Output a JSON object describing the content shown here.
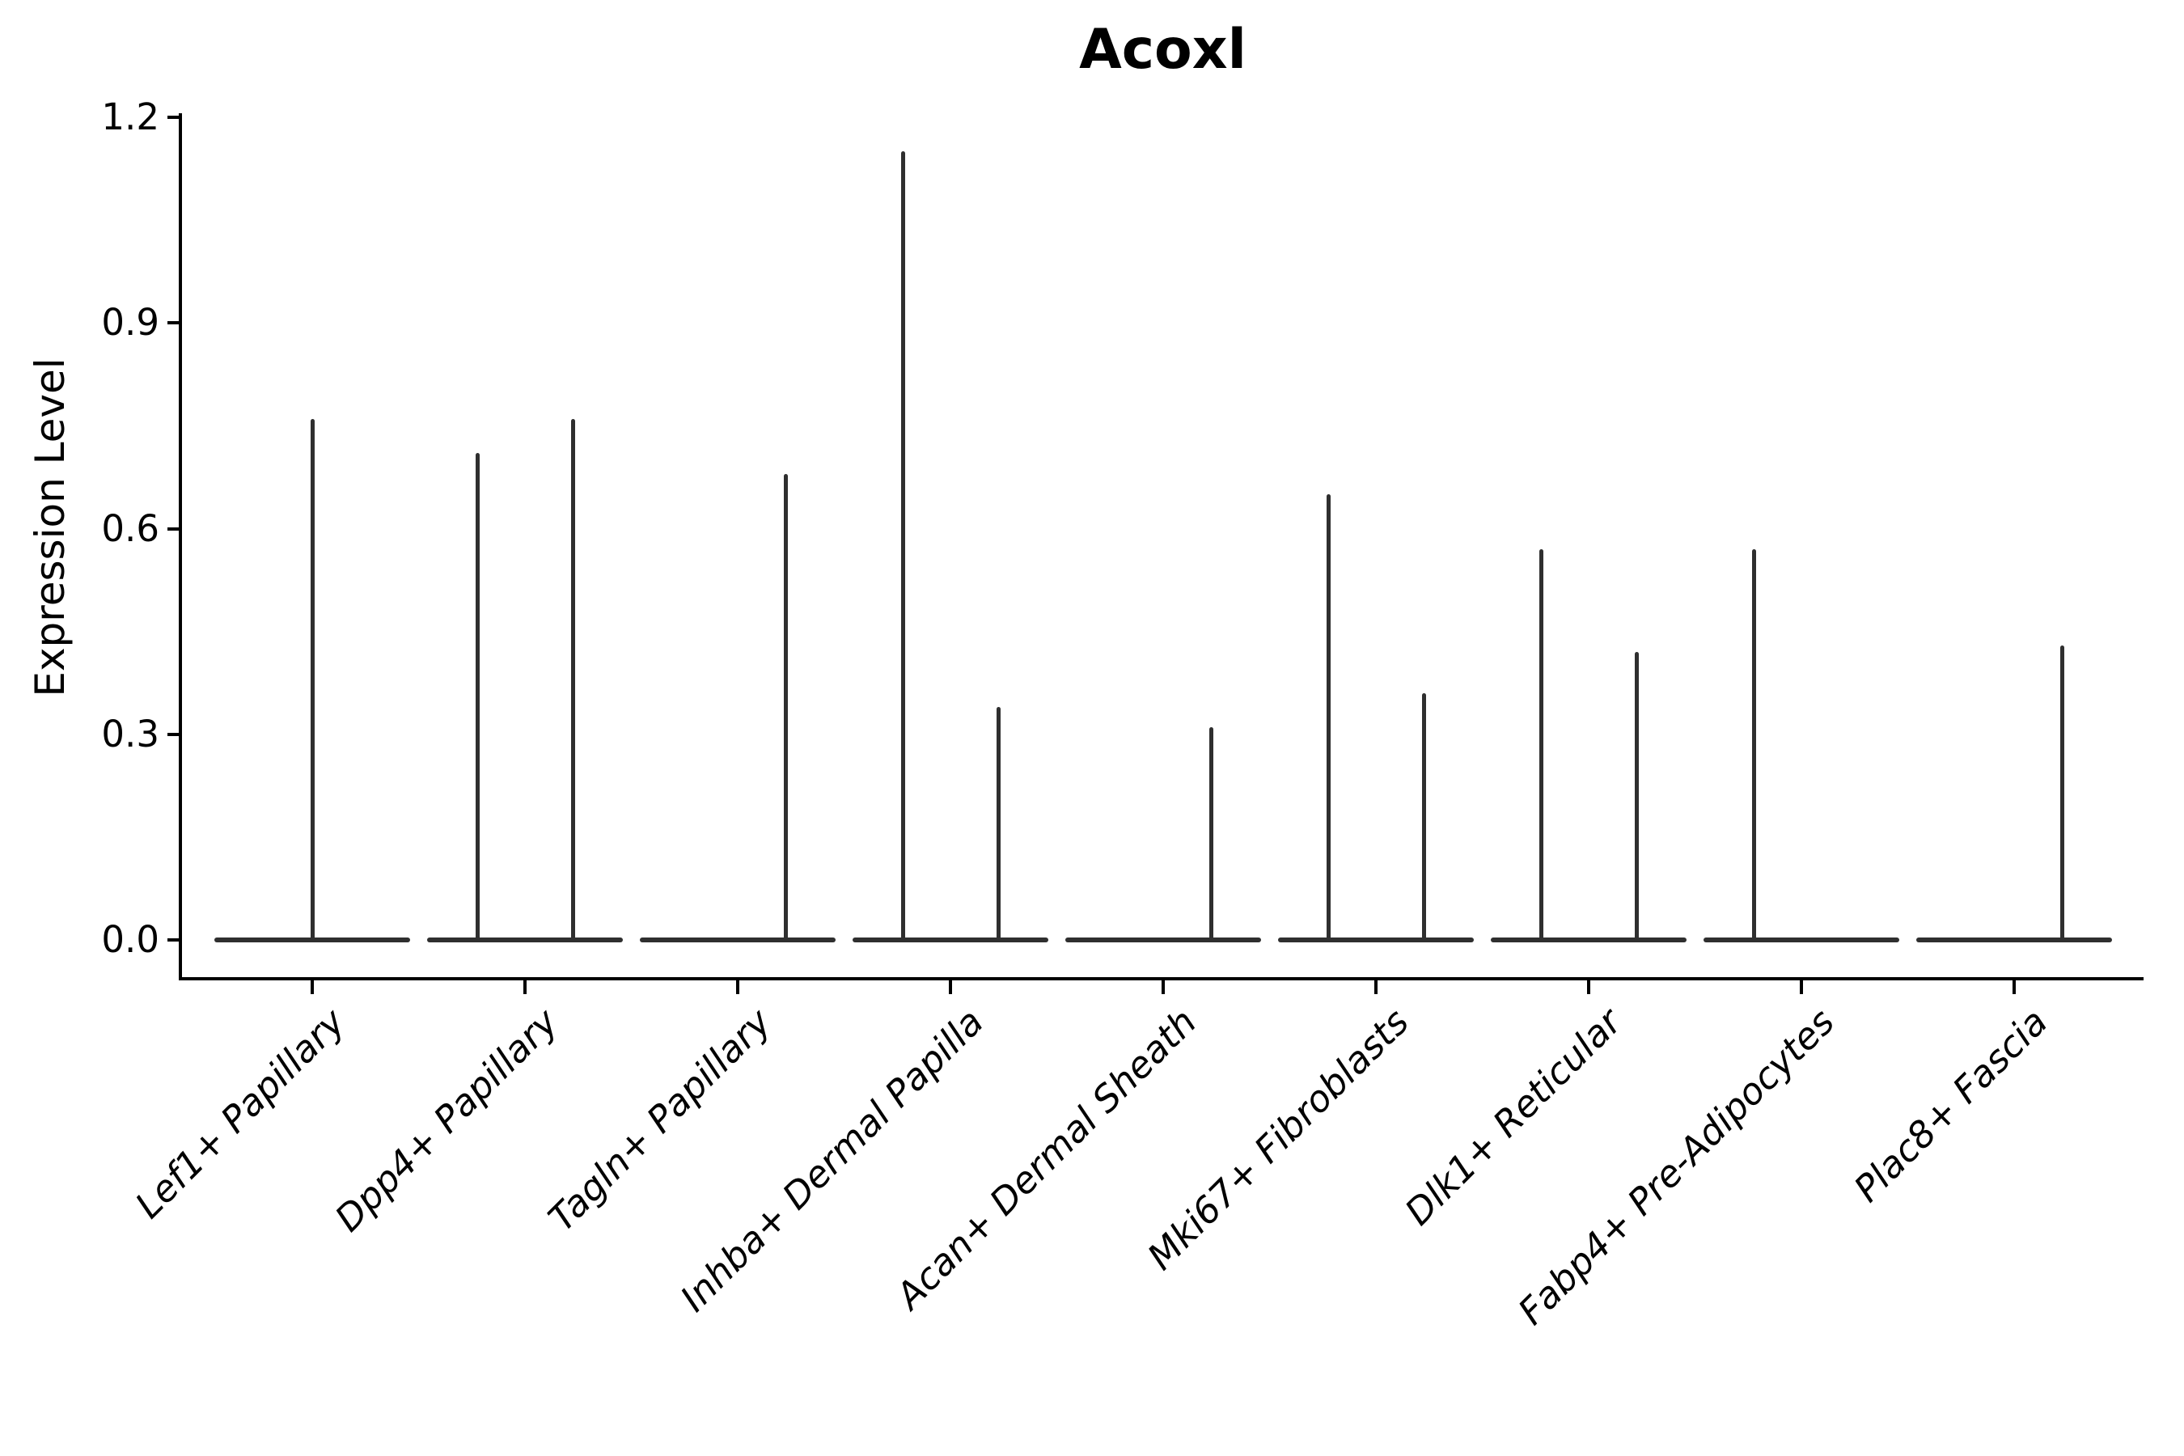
{
  "chart_data": {
    "type": "violin",
    "title": "Acoxl",
    "ylabel": "Expression Level",
    "xlabel": "",
    "ylim": [
      0,
      1.2
    ],
    "yticks": [
      0.0,
      0.3,
      0.6,
      0.9,
      1.2
    ],
    "grid": false,
    "legend": null,
    "violin_line_color": "#2f2f2f",
    "axis_color": "#000000",
    "categories": [
      {
        "label": "Lef1+ Papillary",
        "violins": [
          {
            "position": "center",
            "max_expression": 0.76
          }
        ]
      },
      {
        "label": "Dpp4+ Papillary",
        "violins": [
          {
            "position": "left",
            "max_expression": 0.71
          },
          {
            "position": "right",
            "max_expression": 0.76
          }
        ]
      },
      {
        "label": "Tagln+ Papillary",
        "violins": [
          {
            "position": "right",
            "max_expression": 0.68
          }
        ]
      },
      {
        "label": "Inhba+ Dermal Papilla",
        "violins": [
          {
            "position": "left",
            "max_expression": 1.15
          },
          {
            "position": "right",
            "max_expression": 0.34
          }
        ]
      },
      {
        "label": "Acan+ Dermal Sheath",
        "violins": [
          {
            "position": "right",
            "max_expression": 0.31
          }
        ]
      },
      {
        "label": "Mki67+ Fibroblasts",
        "violins": [
          {
            "position": "left",
            "max_expression": 0.65
          },
          {
            "position": "right",
            "max_expression": 0.36
          }
        ]
      },
      {
        "label": "Dlk1+ Reticular",
        "violins": [
          {
            "position": "left",
            "max_expression": 0.57
          },
          {
            "position": "right",
            "max_expression": 0.42
          }
        ]
      },
      {
        "label": "Fabp4+ Pre-Adipocytes",
        "violins": [
          {
            "position": "left",
            "max_expression": 0.57
          }
        ]
      },
      {
        "label": "Plac8+ Fascia",
        "violins": [
          {
            "position": "right",
            "max_expression": 0.43
          }
        ]
      }
    ]
  }
}
